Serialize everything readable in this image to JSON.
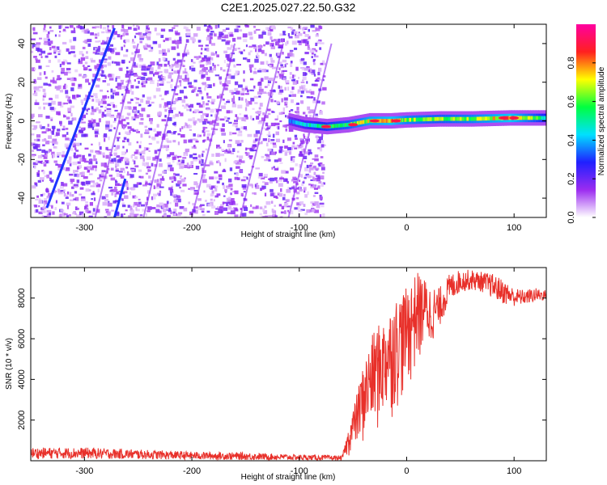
{
  "title": "C2E1.2025.027.22.50.G32",
  "chart_data": [
    {
      "type": "heatmap",
      "xlabel": "Height of straight line (km)",
      "ylabel": "Frequency (Hz)",
      "xlim": [
        -350,
        130
      ],
      "ylim": [
        -50,
        50
      ],
      "xticks": [
        -300,
        -200,
        -100,
        0,
        100
      ],
      "yticks": [
        -40,
        -20,
        0,
        20,
        40
      ],
      "colorbar": {
        "label": "Normalized spectral amplitude",
        "range": [
          0,
          1
        ],
        "ticks": [
          0.0,
          0.2,
          0.4,
          0.6,
          0.8
        ],
        "colormap": [
          "#ffffff",
          "#9b2cf0",
          "#2020ff",
          "#00e0ff",
          "#00ff40",
          "#ffff00",
          "#ff2020",
          "#ff00a0"
        ]
      },
      "noise_region_x": [
        -350,
        -78
      ],
      "tone_track": [
        {
          "x": -110,
          "y": 0,
          "amp": 0.35
        },
        {
          "x": -95,
          "y": -2,
          "amp": 0.45
        },
        {
          "x": -75,
          "y": -3,
          "amp": 0.55
        },
        {
          "x": -55,
          "y": -2,
          "amp": 0.6
        },
        {
          "x": -35,
          "y": 0,
          "amp": 0.7
        },
        {
          "x": -15,
          "y": 0,
          "amp": 0.75
        },
        {
          "x": 0,
          "y": 0.5,
          "amp": 0.65
        },
        {
          "x": 30,
          "y": 1,
          "amp": 0.6
        },
        {
          "x": 60,
          "y": 1,
          "amp": 0.65
        },
        {
          "x": 95,
          "y": 1.5,
          "amp": 0.75
        },
        {
          "x": 130,
          "y": 1.5,
          "amp": 0.5
        }
      ],
      "diagonal_line": {
        "x": [
          -335,
          -272
        ],
        "y": [
          -45,
          48
        ],
        "amp": 0.3
      }
    },
    {
      "type": "line",
      "xlabel": "Height of straight line (km)",
      "ylabel": "SNR (10 * v/v)",
      "xlim": [
        -350,
        130
      ],
      "ylim": [
        0,
        9500
      ],
      "xticks": [
        -300,
        -200,
        -100,
        0,
        100
      ],
      "yticks": [
        2000,
        4000,
        6000,
        8000
      ],
      "color": "#e8302a",
      "envelope_x": [
        -350,
        -300,
        -250,
        -200,
        -150,
        -100,
        -60,
        -50,
        -40,
        -30,
        -20,
        -10,
        0,
        10,
        20,
        30,
        40,
        50,
        60,
        70,
        80,
        90,
        100,
        110,
        120,
        130
      ],
      "envelope_low": [
        100,
        100,
        80,
        60,
        40,
        30,
        20,
        300,
        500,
        800,
        1500,
        2200,
        3000,
        4200,
        5500,
        6500,
        7800,
        8300,
        8400,
        8300,
        8000,
        7700,
        7600,
        7700,
        7800,
        7900
      ],
      "envelope_high": [
        650,
        650,
        550,
        450,
        400,
        300,
        250,
        2500,
        4800,
        6500,
        7000,
        8000,
        8500,
        9300,
        8800,
        8500,
        9200,
        9400,
        9400,
        9300,
        9200,
        8900,
        8500,
        8400,
        8500,
        8400
      ]
    }
  ]
}
